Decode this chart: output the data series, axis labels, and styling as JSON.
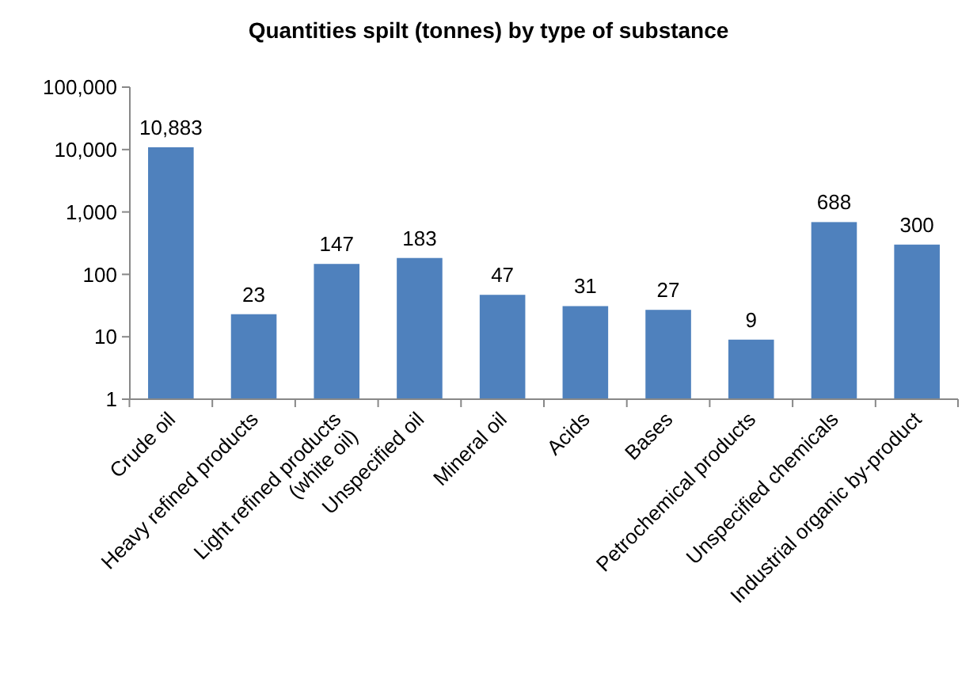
{
  "chart_data": {
    "type": "bar",
    "title": "Quantities spilt (tonnes) by type of substance",
    "categories": [
      "Crude oil",
      "Heavy refined products",
      "Light refined products\n(white oil)",
      "Unspecified oil",
      "Mineral oil",
      "Acids",
      "Bases",
      "Petrochemical products",
      "Unspecified chemicals",
      "Industrial organic by-product"
    ],
    "values": [
      10883,
      23,
      147,
      183,
      47,
      31,
      27,
      9,
      688,
      300
    ],
    "value_labels": [
      "10,883",
      "23",
      "147",
      "183",
      "47",
      "31",
      "27",
      "9",
      "688",
      "300"
    ],
    "color": "#4f81bd",
    "log": true,
    "ylim": [
      1,
      100000
    ],
    "yticks": [
      1,
      10,
      100,
      {
        "value": 1000,
        "label": "1,000"
      },
      {
        "value": 10000,
        "label": "10,000"
      },
      {
        "value": 100000,
        "label": "100,000"
      }
    ],
    "grid": false
  }
}
